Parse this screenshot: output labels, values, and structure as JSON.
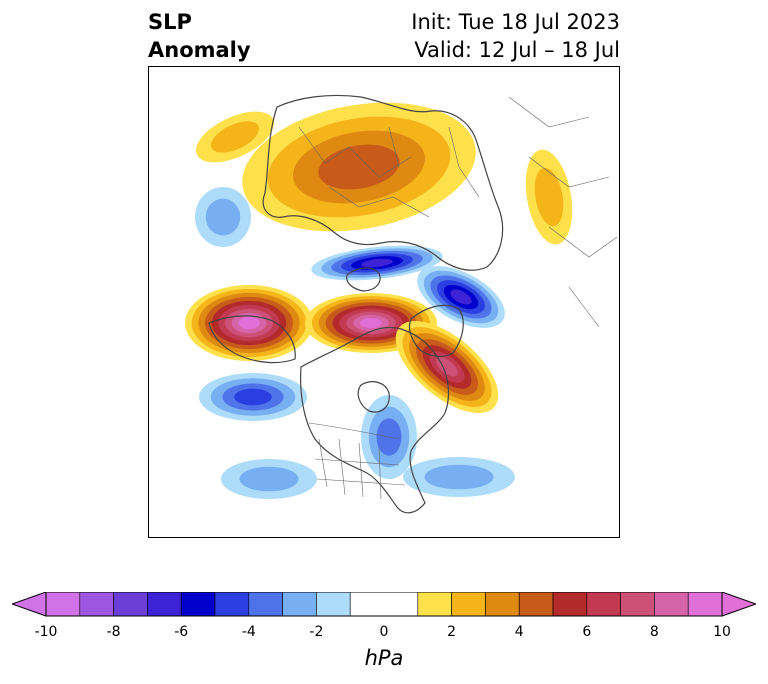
{
  "title": {
    "left_line1": "SLP",
    "left_line2": "Anomaly",
    "right_line1": "Init: Tue 18 Jul 2023",
    "right_line2": "Valid: 12 Jul – 18 Jul"
  },
  "colorbar": {
    "unit": "hPa",
    "ticks": [
      "-10",
      "-8",
      "-6",
      "-4",
      "-2",
      "0",
      "2",
      "4",
      "6",
      "8",
      "10"
    ],
    "bins": [
      {
        "from": -10,
        "to": -9,
        "color": "#d272e8"
      },
      {
        "from": -9,
        "to": -8,
        "color": "#9e57e0"
      },
      {
        "from": -8,
        "to": -7,
        "color": "#6b3ed8"
      },
      {
        "from": -7,
        "to": -6,
        "color": "#3d22d6"
      },
      {
        "from": -6,
        "to": -5,
        "color": "#0000cc"
      },
      {
        "from": -5,
        "to": -4,
        "color": "#2b3fe0"
      },
      {
        "from": -4,
        "to": -3,
        "color": "#4f74ea"
      },
      {
        "from": -3,
        "to": -2,
        "color": "#78aef2"
      },
      {
        "from": -2,
        "to": -1,
        "color": "#acdcfa"
      },
      {
        "from": -1,
        "to": 1,
        "color": "#ffffff"
      },
      {
        "from": 1,
        "to": 2,
        "color": "#fde04a"
      },
      {
        "from": 2,
        "to": 3,
        "color": "#f4b41a"
      },
      {
        "from": 3,
        "to": 4,
        "color": "#de8a12"
      },
      {
        "from": 4,
        "to": 5,
        "color": "#c85a1a"
      },
      {
        "from": 5,
        "to": 6,
        "color": "#b22a2a"
      },
      {
        "from": 6,
        "to": 7,
        "color": "#c23a52"
      },
      {
        "from": 7,
        "to": 8,
        "color": "#cc5078"
      },
      {
        "from": 8,
        "to": 9,
        "color": "#d664a8"
      },
      {
        "from": 9,
        "to": 10,
        "color": "#e070d8"
      }
    ],
    "extend_low_color": "#d272e8",
    "extend_high_color": "#e070d8"
  },
  "anomaly_features": [
    {
      "id": "north-pacific-high",
      "type": "high",
      "peak_hpa": 9
    },
    {
      "id": "arctic-high",
      "type": "high",
      "peak_hpa": 9
    },
    {
      "id": "canada-greenland-high",
      "type": "high",
      "peak_hpa": 7
    },
    {
      "id": "eurasia-high",
      "type": "high",
      "peak_hpa": 4
    },
    {
      "id": "arctic-low",
      "type": "low",
      "peak_hpa": -6
    },
    {
      "id": "siberia-low",
      "type": "low",
      "peak_hpa": -6
    },
    {
      "id": "pacific-low",
      "type": "low",
      "peak_hpa": -4
    },
    {
      "id": "hudson-low",
      "type": "low",
      "peak_hpa": -3
    }
  ]
}
